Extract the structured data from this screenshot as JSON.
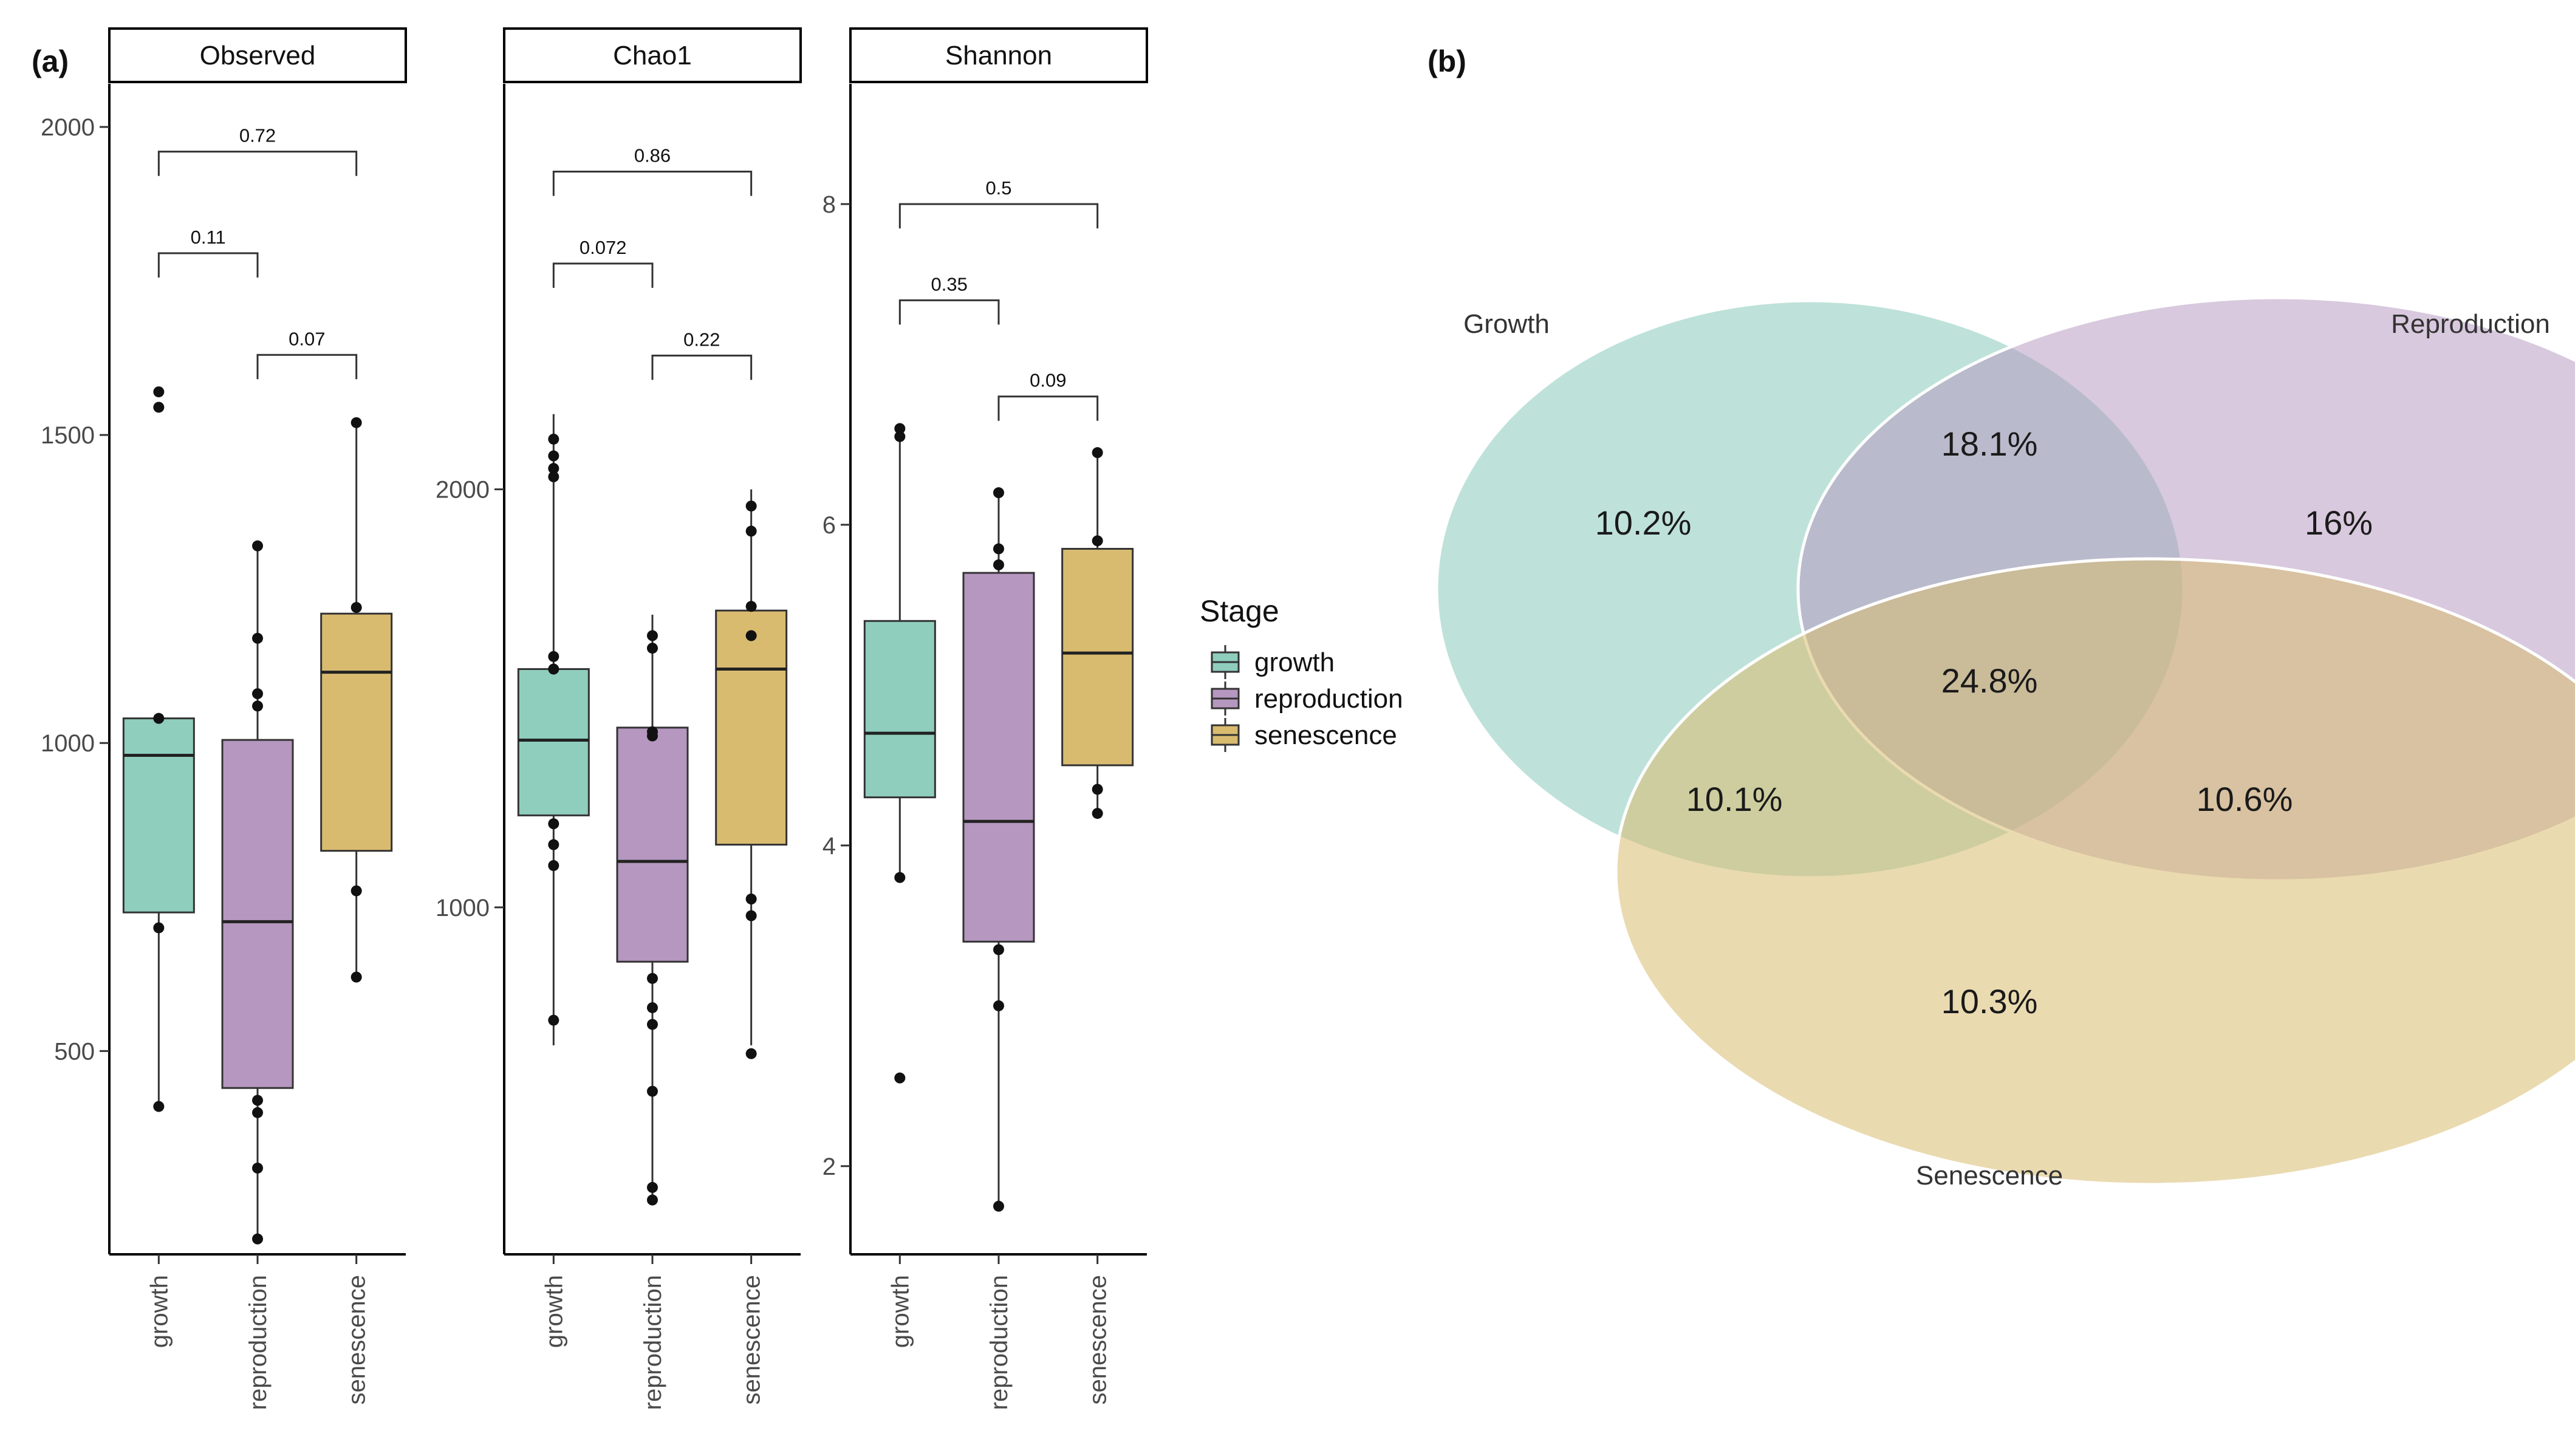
{
  "panel_tags": {
    "a": "(a)",
    "b": "(b)"
  },
  "colors": {
    "growth": "#8fcdbd",
    "reproduction": "#b597bf",
    "senescence": "#d9bb70",
    "axis": "#000000"
  },
  "chart_data": [
    {
      "type": "box",
      "title": "Observed",
      "categories": [
        "growth",
        "reproduction",
        "senescence"
      ],
      "ylim": [
        170,
        2070
      ],
      "yticks": [
        500,
        1000,
        1500,
        2000
      ],
      "ytick_labels": [
        "500",
        "1000",
        "1500",
        "2000"
      ],
      "boxes": [
        {
          "min": 410,
          "q1": 725,
          "median": 980,
          "q3": 1040,
          "max": 1045,
          "points": [
            1570,
            1545,
            1040,
            700,
            410
          ]
        },
        {
          "min": 190,
          "q1": 440,
          "median": 710,
          "q3": 1005,
          "max": 1320,
          "points": [
            1320,
            1170,
            1080,
            1060,
            420,
            400,
            310,
            195
          ]
        },
        {
          "min": 620,
          "q1": 825,
          "median": 1115,
          "q3": 1210,
          "max": 1520,
          "points": [
            1520,
            1220,
            760,
            620
          ]
        }
      ],
      "comparisons": [
        {
          "from": 0,
          "to": 2,
          "label": "0.72",
          "y": 1960
        },
        {
          "from": 0,
          "to": 1,
          "label": "0.11",
          "y": 1795
        },
        {
          "from": 1,
          "to": 2,
          "label": "0.07",
          "y": 1630
        }
      ]
    },
    {
      "type": "box",
      "title": "Chao1",
      "categories": [
        "growth",
        "reproduction",
        "senescence"
      ],
      "ylim": [
        170,
        2970
      ],
      "yticks": [
        1000,
        2000
      ],
      "ytick_labels": [
        "1000",
        "2000"
      ],
      "boxes": [
        {
          "min": 670,
          "q1": 1220,
          "median": 1400,
          "q3": 1570,
          "max": 2180,
          "points": [
            2120,
            2080,
            2050,
            2030,
            1600,
            1570,
            1200,
            1150,
            1100,
            730
          ]
        },
        {
          "min": 310,
          "q1": 870,
          "median": 1110,
          "q3": 1430,
          "max": 1700,
          "points": [
            1650,
            1620,
            1420,
            1410,
            830,
            760,
            720,
            560,
            330,
            300
          ]
        },
        {
          "min": 670,
          "q1": 1150,
          "median": 1570,
          "q3": 1710,
          "max": 2000,
          "points": [
            1960,
            1900,
            1720,
            1650,
            1020,
            980,
            650
          ]
        }
      ],
      "comparisons": [
        {
          "from": 0,
          "to": 2,
          "label": "0.86",
          "y": 2760
        },
        {
          "from": 0,
          "to": 1,
          "label": "0.072",
          "y": 2540
        },
        {
          "from": 1,
          "to": 2,
          "label": "0.22",
          "y": 2320
        }
      ]
    },
    {
      "type": "box",
      "title": "Shannon",
      "categories": [
        "growth",
        "reproduction",
        "senescence"
      ],
      "ylim": [
        1.45,
        8.75
      ],
      "yticks": [
        2,
        4,
        6,
        8
      ],
      "ytick_labels": [
        "2",
        "4",
        "6",
        "8"
      ],
      "boxes": [
        {
          "min": 3.8,
          "q1": 4.3,
          "median": 4.7,
          "q3": 5.4,
          "max": 6.6,
          "points": [
            6.6,
            6.55,
            3.8,
            2.55
          ]
        },
        {
          "min": 1.75,
          "q1": 3.4,
          "median": 4.15,
          "q3": 5.7,
          "max": 6.2,
          "points": [
            6.2,
            5.85,
            5.75,
            3.35,
            3.0,
            1.75
          ]
        },
        {
          "min": 4.2,
          "q1": 4.5,
          "median": 5.2,
          "q3": 5.85,
          "max": 6.45,
          "points": [
            6.45,
            5.9,
            4.35,
            4.2
          ]
        }
      ],
      "comparisons": [
        {
          "from": 0,
          "to": 2,
          "label": "0.5",
          "y": 8.0
        },
        {
          "from": 0,
          "to": 1,
          "label": "0.35",
          "y": 7.4
        },
        {
          "from": 1,
          "to": 2,
          "label": "0.09",
          "y": 6.8
        }
      ]
    },
    {
      "type": "venn",
      "sets": [
        "Growth",
        "Reproduction",
        "Senescence"
      ],
      "regions": [
        {
          "sets": [
            "Growth"
          ],
          "label": "10.2%"
        },
        {
          "sets": [
            "Reproduction"
          ],
          "label": "16%"
        },
        {
          "sets": [
            "Senescence"
          ],
          "label": "10.3%"
        },
        {
          "sets": [
            "Growth",
            "Reproduction"
          ],
          "label": "18.1%"
        },
        {
          "sets": [
            "Growth",
            "Senescence"
          ],
          "label": "10.1%"
        },
        {
          "sets": [
            "Reproduction",
            "Senescence"
          ],
          "label": "10.6%"
        },
        {
          "sets": [
            "Growth",
            "Reproduction",
            "Senescence"
          ],
          "label": "24.8%"
        }
      ]
    }
  ],
  "legend": {
    "title": "Stage",
    "items": [
      "growth",
      "reproduction",
      "senescence"
    ]
  }
}
